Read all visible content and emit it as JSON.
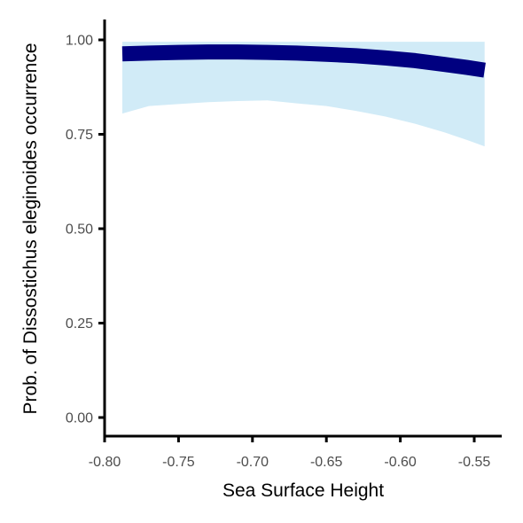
{
  "chart_data": {
    "type": "line",
    "title": "",
    "xlabel": "Sea Surface Height",
    "ylabel": "Prob. of  Dissostichus eleginoides  occurrence",
    "xlim": [
      -0.8,
      -0.53
    ],
    "ylim": [
      -0.05,
      1.05
    ],
    "x_ticks": [
      -0.8,
      -0.75,
      -0.7,
      -0.65,
      -0.6,
      -0.55
    ],
    "x_tick_labels": [
      "-0.80",
      "-0.75",
      "-0.70",
      "-0.65",
      "-0.60",
      "-0.55"
    ],
    "y_ticks": [
      0.0,
      0.25,
      0.5,
      0.75,
      1.0
    ],
    "y_tick_labels": [
      "0.00",
      "0.25",
      "0.50",
      "0.75",
      "1.00"
    ],
    "grid": false,
    "series": [
      {
        "x": [
          -0.788,
          -0.77,
          -0.75,
          -0.73,
          -0.71,
          -0.69,
          -0.67,
          -0.65,
          -0.63,
          -0.61,
          -0.59,
          -0.57,
          -0.555,
          -0.543
        ],
        "y": [
          0.963,
          0.965,
          0.967,
          0.968,
          0.968,
          0.967,
          0.965,
          0.962,
          0.958,
          0.952,
          0.945,
          0.935,
          0.927,
          0.92
        ],
        "lower": [
          0.805,
          0.825,
          0.83,
          0.835,
          0.838,
          0.84,
          0.832,
          0.825,
          0.812,
          0.797,
          0.778,
          0.755,
          0.735,
          0.718
        ],
        "upper": [
          0.995,
          0.995,
          0.995,
          0.995,
          0.995,
          0.995,
          0.995,
          0.995,
          0.995,
          0.995,
          0.995,
          0.995,
          0.995,
          0.995
        ]
      }
    ],
    "colors": {
      "line": "#000080",
      "ribbon": "#d1ebf7",
      "axis": "#000000",
      "tick_text": "#4d4d4d"
    }
  }
}
